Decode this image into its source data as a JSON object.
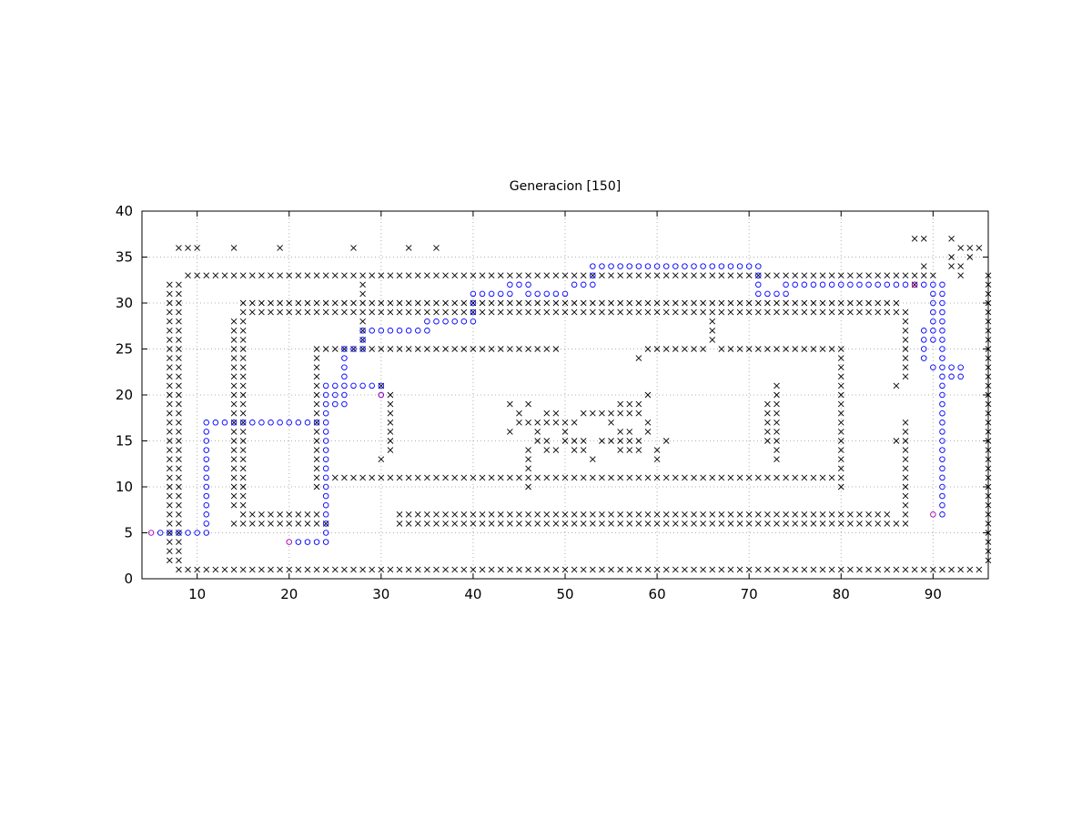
{
  "chart_data": {
    "type": "scatter",
    "title": "Generacion [150]",
    "xlabel": "",
    "ylabel": "",
    "xlim": [
      4,
      96
    ],
    "ylim": [
      0,
      40
    ],
    "xticks": [
      10,
      20,
      30,
      40,
      50,
      60,
      70,
      80,
      90
    ],
    "yticks": [
      0,
      5,
      10,
      15,
      20,
      25,
      30,
      35,
      40
    ],
    "grid": true,
    "legend": "none",
    "colors": {
      "walls": "#000000",
      "path": "#0000ff",
      "endpoints": "#aa00aa",
      "grid": "#b0b0b0"
    },
    "series": [
      {
        "marker": "x",
        "color": "#000000",
        "segments": [
          [
            8,
            1,
            95,
            1
          ],
          [
            9,
            33,
            89,
            33
          ],
          [
            15,
            30,
            86,
            30
          ],
          [
            15,
            29,
            86,
            29
          ],
          [
            23,
            25,
            49,
            25
          ],
          [
            59,
            25,
            65,
            25
          ],
          [
            67,
            25,
            79,
            25
          ],
          [
            25,
            11,
            79,
            11
          ],
          [
            14,
            6,
            24,
            6
          ],
          [
            15,
            7,
            23,
            7
          ],
          [
            32,
            7,
            85,
            7
          ],
          [
            32,
            6,
            86,
            6
          ],
          [
            7,
            2,
            7,
            32
          ],
          [
            8,
            2,
            8,
            32
          ],
          [
            14,
            8,
            14,
            28
          ],
          [
            15,
            8,
            15,
            28
          ],
          [
            96,
            2,
            96,
            33
          ],
          [
            80,
            10,
            80,
            25
          ],
          [
            87,
            6,
            87,
            17
          ],
          [
            87,
            22,
            87,
            29
          ],
          [
            23,
            10,
            23,
            16
          ],
          [
            23,
            17,
            23,
            25
          ],
          [
            31,
            14,
            31,
            20
          ],
          [
            72,
            15,
            72,
            19
          ],
          [
            73,
            13,
            73,
            21
          ],
          [
            66,
            26,
            66,
            28
          ],
          [
            28,
            25,
            28,
            32
          ],
          [
            46,
            10,
            46,
            14
          ],
          [
            45,
            17,
            50,
            17
          ],
          [
            48,
            14,
            49,
            14
          ],
          [
            51,
            14,
            52,
            14
          ],
          [
            52,
            18,
            58,
            18
          ],
          [
            54,
            15,
            58,
            15
          ],
          [
            56,
            14,
            58,
            14
          ],
          [
            56,
            19,
            58,
            19
          ],
          [
            92,
            34,
            93,
            34
          ],
          [
            93,
            36,
            95,
            36
          ]
        ],
        "points": [
          [
            8,
            36
          ],
          [
            9,
            36
          ],
          [
            10,
            36
          ],
          [
            14,
            36
          ],
          [
            19,
            36
          ],
          [
            27,
            36
          ],
          [
            33,
            36
          ],
          [
            36,
            36
          ],
          [
            88,
            37
          ],
          [
            89,
            37
          ],
          [
            92,
            37
          ],
          [
            92,
            35
          ],
          [
            94,
            35
          ],
          [
            93,
            33
          ],
          [
            90,
            33
          ],
          [
            89,
            34
          ],
          [
            86,
            21
          ],
          [
            86,
            15
          ],
          [
            58,
            24
          ],
          [
            59,
            20
          ],
          [
            61,
            15
          ],
          [
            60,
            13
          ],
          [
            60,
            14
          ],
          [
            53,
            13
          ],
          [
            44,
            16
          ],
          [
            44,
            19
          ],
          [
            45,
            18
          ],
          [
            46,
            19
          ],
          [
            47,
            15
          ],
          [
            47,
            16
          ],
          [
            48,
            15
          ],
          [
            48,
            18
          ],
          [
            49,
            18
          ],
          [
            50,
            15
          ],
          [
            50,
            16
          ],
          [
            51,
            17
          ],
          [
            51,
            15
          ],
          [
            52,
            15
          ],
          [
            55,
            17
          ],
          [
            56,
            16
          ],
          [
            57,
            16
          ],
          [
            59,
            17
          ],
          [
            59,
            16
          ],
          [
            30,
            13
          ],
          [
            30,
            21
          ],
          [
            22,
            6
          ],
          [
            88,
            32
          ]
        ]
      },
      {
        "marker": "o",
        "color": "#0000ff",
        "segments": [
          [
            6,
            5,
            11,
            5
          ],
          [
            11,
            5,
            11,
            17
          ],
          [
            11,
            17,
            24,
            17
          ],
          [
            21,
            4,
            24,
            4
          ],
          [
            24,
            4,
            24,
            20
          ],
          [
            24,
            20,
            26,
            20
          ],
          [
            26,
            20,
            26,
            25
          ],
          [
            26,
            25,
            28,
            25
          ],
          [
            28,
            25,
            28,
            27
          ],
          [
            28,
            27,
            35,
            27
          ],
          [
            35,
            28,
            39,
            28
          ],
          [
            40,
            28,
            40,
            31
          ],
          [
            40,
            31,
            44,
            31
          ],
          [
            44,
            32,
            46,
            32
          ],
          [
            46,
            31,
            50,
            31
          ],
          [
            51,
            32,
            53,
            32
          ],
          [
            53,
            33,
            53,
            34
          ],
          [
            53,
            34,
            70,
            34
          ],
          [
            71,
            31,
            71,
            34
          ],
          [
            71,
            31,
            74,
            31
          ],
          [
            74,
            32,
            90,
            32
          ],
          [
            91,
            7,
            91,
            32
          ],
          [
            90,
            23,
            93,
            23
          ],
          [
            92,
            22,
            93,
            22
          ],
          [
            90,
            26,
            90,
            32
          ],
          [
            89,
            24,
            89,
            27
          ],
          [
            25,
            21,
            30,
            21
          ],
          [
            25,
            19,
            26,
            19
          ]
        ],
        "points": [
          [
            29,
            21
          ],
          [
            30,
            20
          ],
          [
            27,
            25
          ],
          [
            24,
            21
          ],
          [
            90,
            27
          ]
        ]
      },
      {
        "marker": "o",
        "color": "#aa00aa",
        "segments": [],
        "points": [
          [
            5,
            5
          ],
          [
            20,
            4
          ],
          [
            30,
            20
          ],
          [
            88,
            32
          ],
          [
            90,
            7
          ]
        ]
      }
    ]
  }
}
